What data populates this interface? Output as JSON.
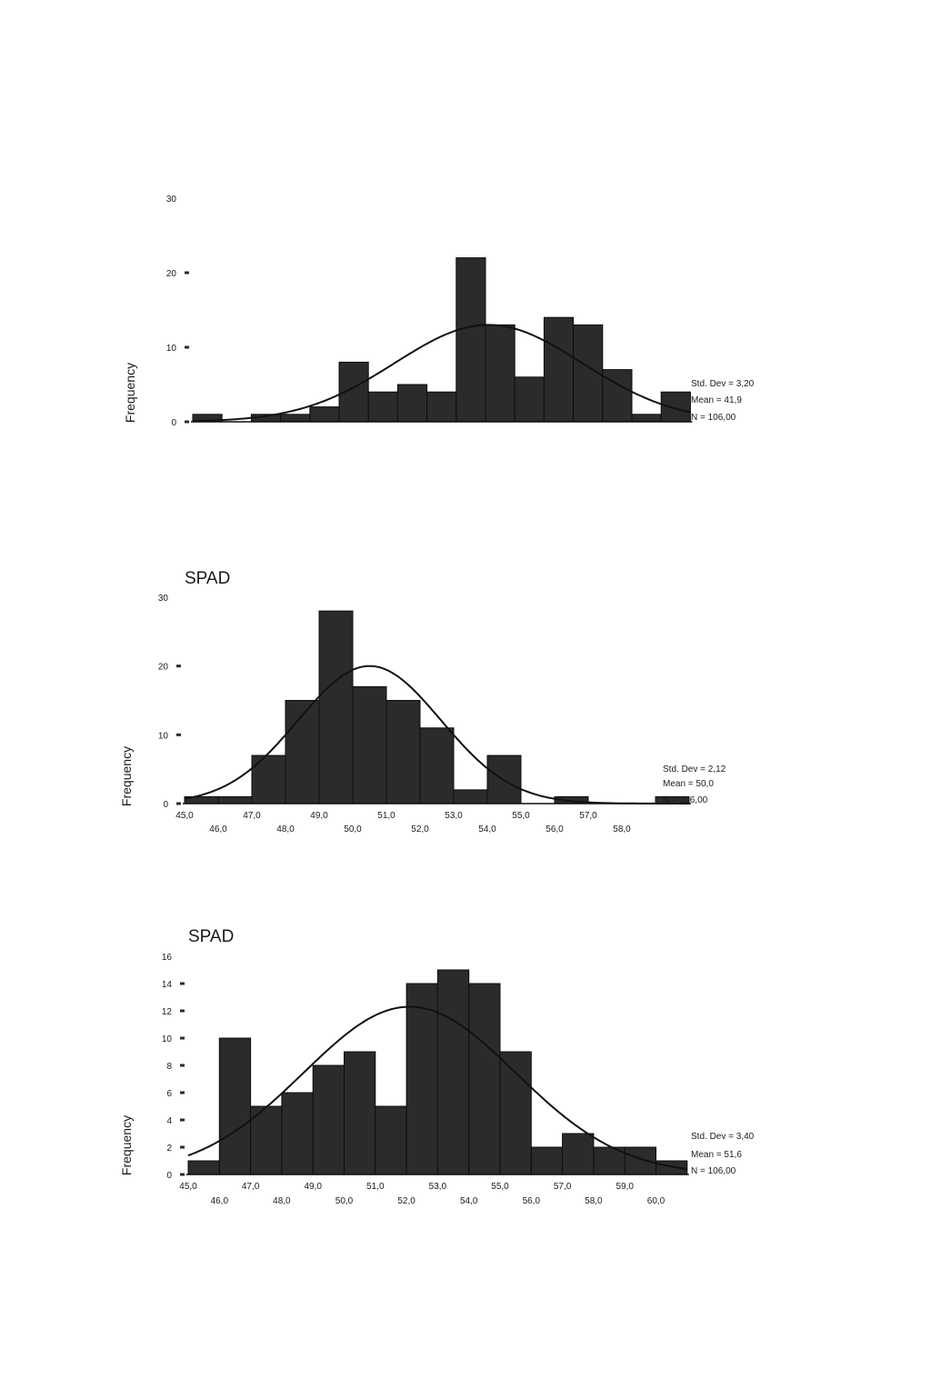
{
  "colors": {
    "bar": "#2b2b2b",
    "bar_edge": "#0d0d0d",
    "curve": "#111111",
    "text": "#1a1a1a"
  },
  "chart_data": [
    {
      "type": "bar",
      "title": "",
      "xlabel": "",
      "ylabel": "Frequency",
      "ylim": [
        0,
        30
      ],
      "y_ticks": [
        0,
        10,
        20,
        30
      ],
      "x_ticks_top": [],
      "x_ticks_bottom": [],
      "bin_start": 0,
      "values": [
        1,
        0,
        1,
        1,
        2,
        8,
        4,
        5,
        4,
        22,
        13,
        6,
        14,
        13,
        7,
        1,
        4
      ],
      "stats": [
        "Std. Dev = 3,20",
        "Mean = 41,9",
        "N = 106,00"
      ],
      "curve_peak_bin": 10.1,
      "curve_sd_bins": 3.2,
      "curve_peak": 13
    },
    {
      "type": "bar",
      "title": "SPAD",
      "xlabel": "",
      "ylabel": "Frequency",
      "ylim": [
        0,
        30
      ],
      "y_ticks": [
        0,
        10,
        20,
        30
      ],
      "x_ticks_top": [
        "45,0",
        "47,0",
        "49,0",
        "51,0",
        "53,0",
        "55,0",
        "57,0"
      ],
      "x_ticks_bottom": [
        "46,0",
        "48,0",
        "50,0",
        "52,0",
        "54,0",
        "56,0",
        "58,0"
      ],
      "bin_start": 45.0,
      "values": [
        1,
        1,
        7,
        15,
        28,
        17,
        15,
        11,
        2,
        7,
        0,
        1,
        0,
        0,
        1
      ],
      "stats": [
        "Std. Dev = 2,12",
        "Mean = 50,0",
        "N = 106,00"
      ],
      "curve_peak_bin": 50.5,
      "curve_sd_bins": 2.12,
      "curve_peak": 20
    },
    {
      "type": "bar",
      "title": "SPAD",
      "xlabel": "",
      "ylabel": "Frequency",
      "ylim": [
        0,
        16
      ],
      "y_ticks": [
        0,
        2,
        4,
        6,
        8,
        10,
        12,
        14,
        16
      ],
      "x_ticks_top": [
        "45,0",
        "47,0",
        "49,0",
        "51,0",
        "53,0",
        "55,0",
        "57,0",
        "59,0"
      ],
      "x_ticks_bottom": [
        "46,0",
        "48,0",
        "50,0",
        "52,0",
        "54,0",
        "56,0",
        "58,0",
        "60,0"
      ],
      "bin_start": 45.0,
      "values": [
        1,
        10,
        5,
        6,
        8,
        9,
        5,
        14,
        15,
        14,
        9,
        2,
        3,
        2,
        2,
        1
      ],
      "stats": [
        "Std. Dev = 3,40",
        "Mean = 51,6",
        "N = 106,00"
      ],
      "curve_peak_bin": 52.1,
      "curve_sd_bins": 3.4,
      "curve_peak": 12.3
    }
  ]
}
